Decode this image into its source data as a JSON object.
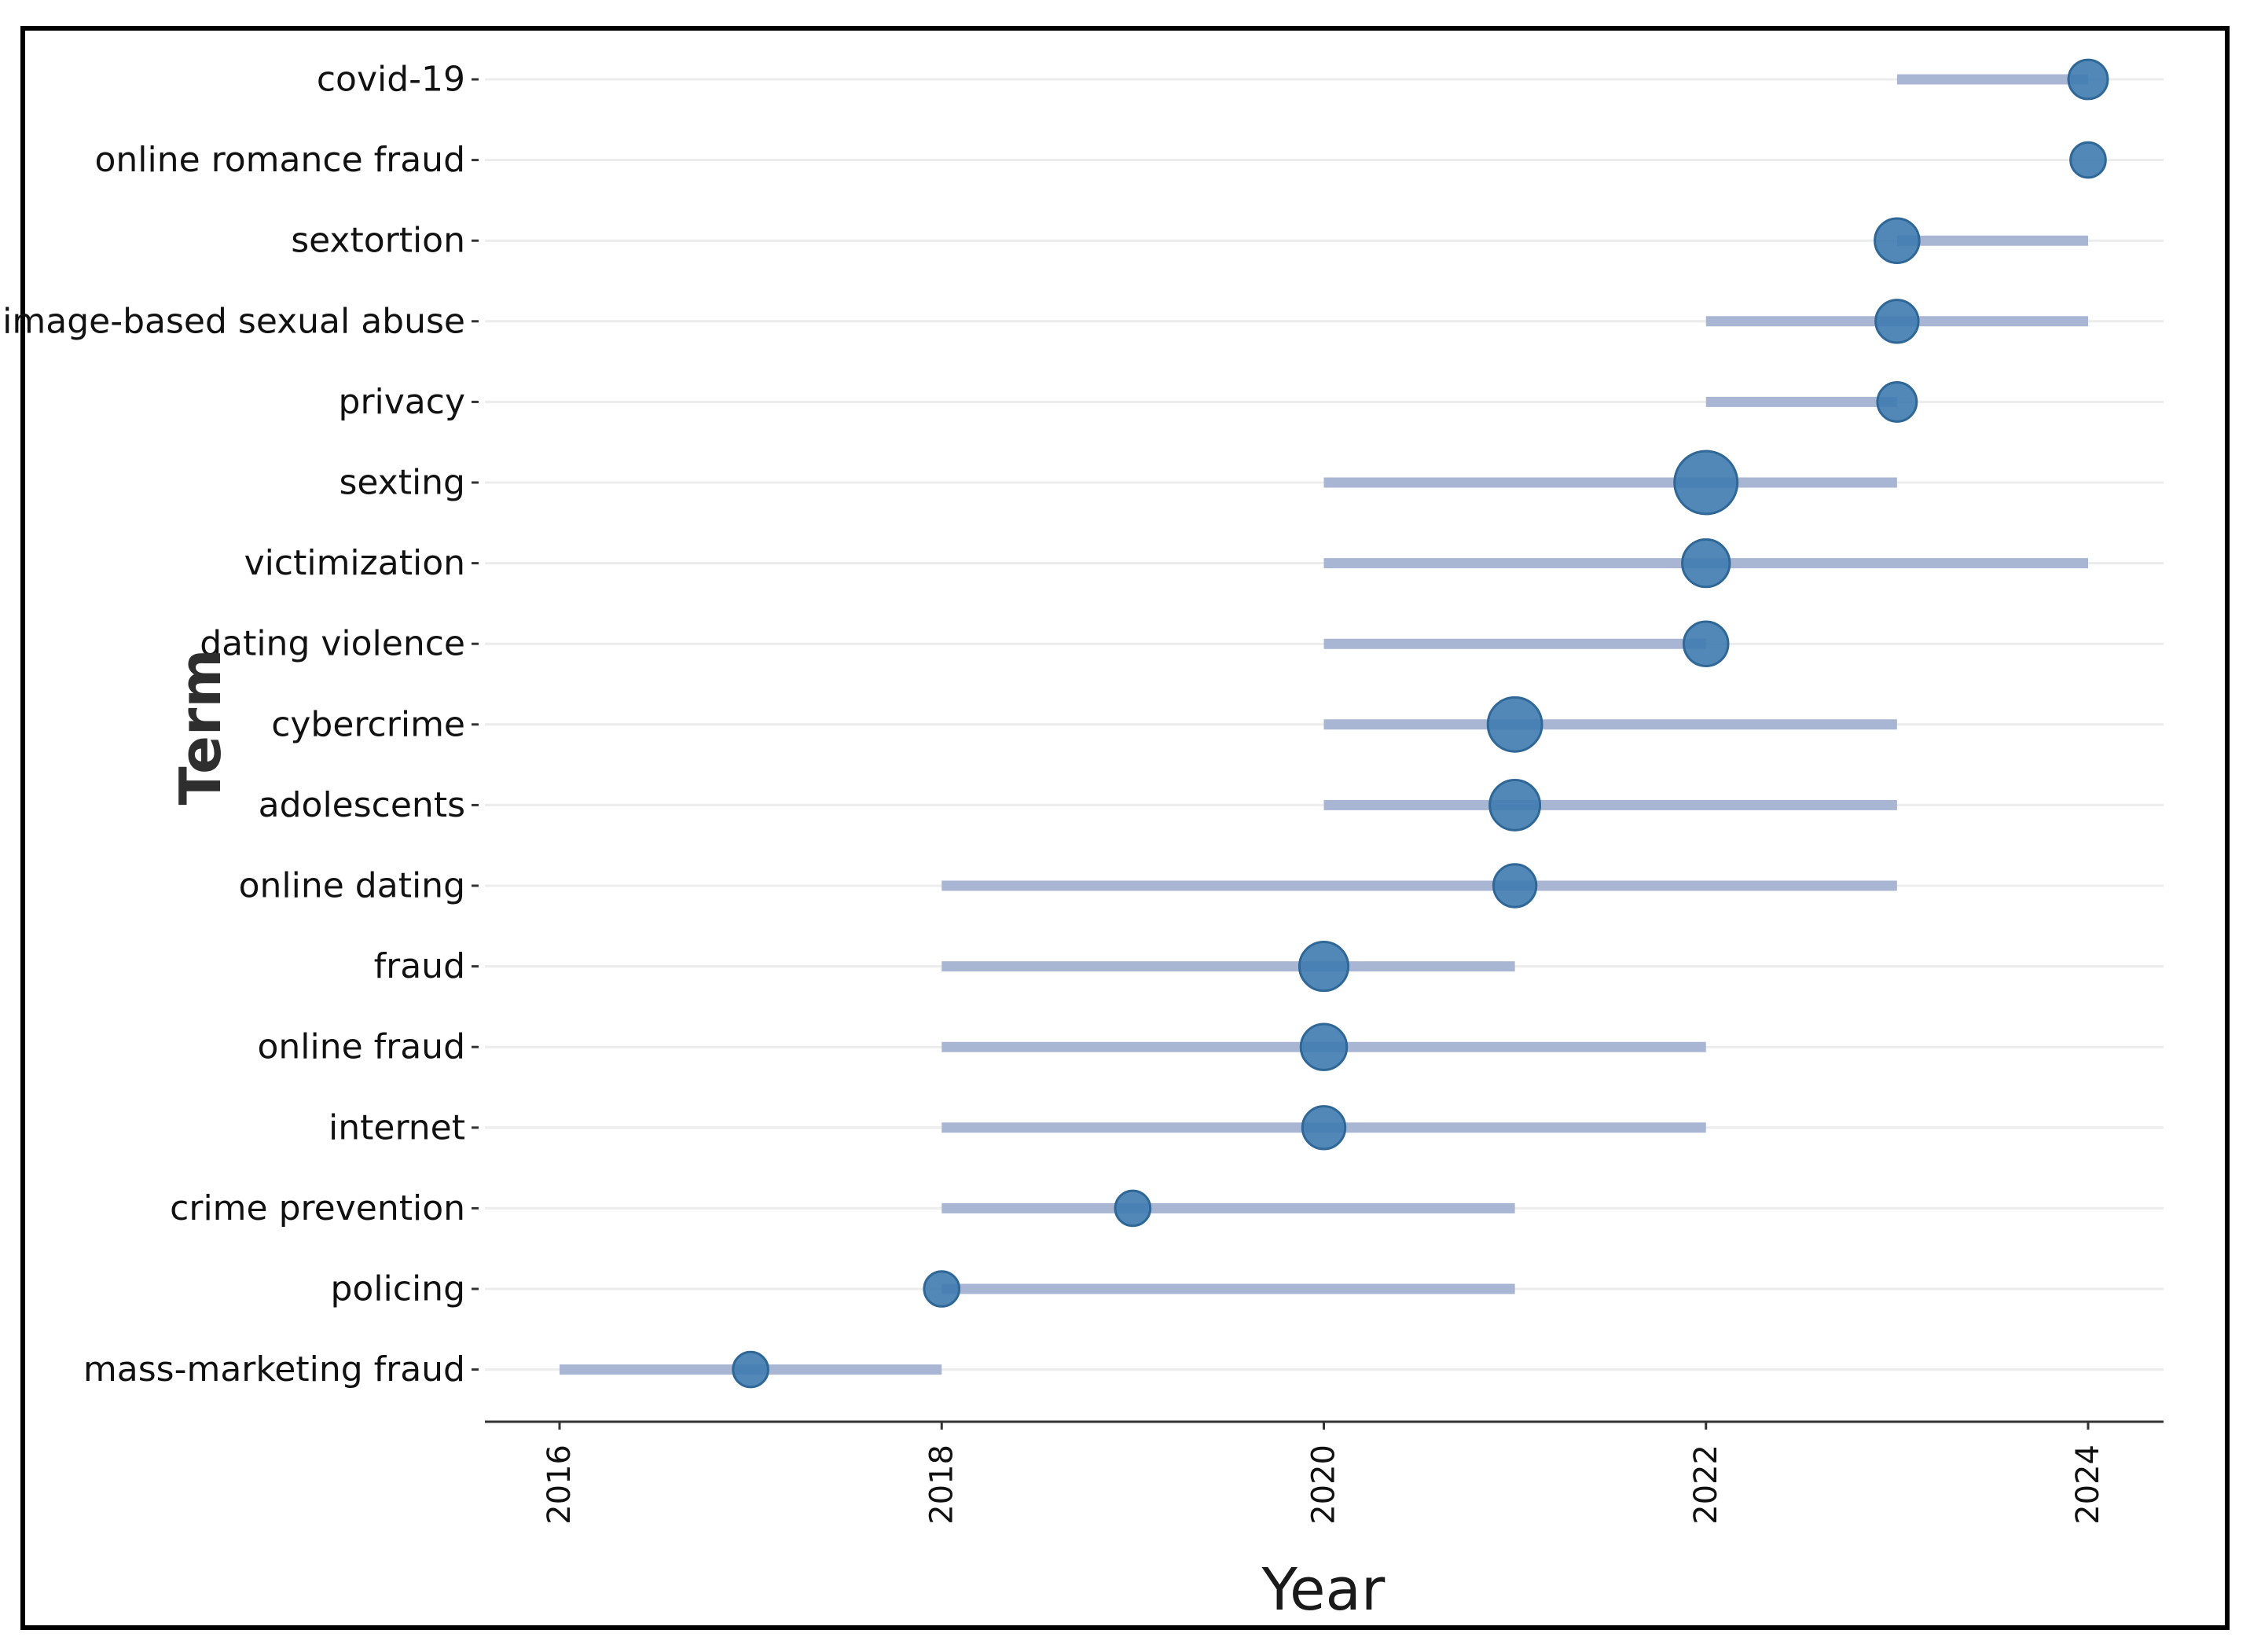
{
  "chart_data": {
    "type": "scatter",
    "subtype": "trend-topics-dot-range",
    "title": "",
    "xlabel": "Year",
    "ylabel": "Term",
    "xlim": [
      2015.8,
      2024.2
    ],
    "x_ticks": [
      2016,
      2018,
      2020,
      2022,
      2024
    ],
    "grid": true,
    "colors": {
      "bar": "#a9b6d3",
      "dot": "#3f7bb0",
      "dot_outline": "#2f6797"
    },
    "terms": [
      {
        "term": "covid-19",
        "start": 2023,
        "median": 2024,
        "end": 2024,
        "freq": 7
      },
      {
        "term": "online romance fraud",
        "start": 2024,
        "median": 2024,
        "end": 2024,
        "freq": 5
      },
      {
        "term": "sextortion",
        "start": 2023,
        "median": 2023,
        "end": 2024,
        "freq": 10
      },
      {
        "term": "image-based sexual abuse",
        "start": 2022,
        "median": 2023,
        "end": 2024,
        "freq": 9
      },
      {
        "term": "privacy",
        "start": 2022,
        "median": 2023,
        "end": 2023,
        "freq": 7
      },
      {
        "term": "sexting",
        "start": 2020,
        "median": 2022,
        "end": 2023,
        "freq": 25
      },
      {
        "term": "victimization",
        "start": 2020,
        "median": 2022,
        "end": 2024,
        "freq": 12
      },
      {
        "term": "dating violence",
        "start": 2020,
        "median": 2022,
        "end": 2022,
        "freq": 10
      },
      {
        "term": "cybercrime",
        "start": 2020,
        "median": 2021,
        "end": 2023,
        "freq": 17
      },
      {
        "term": "adolescents",
        "start": 2020,
        "median": 2021,
        "end": 2023,
        "freq": 14
      },
      {
        "term": "online dating",
        "start": 2018,
        "median": 2021,
        "end": 2023,
        "freq": 9
      },
      {
        "term": "fraud",
        "start": 2018,
        "median": 2020,
        "end": 2021,
        "freq": 13
      },
      {
        "term": "online fraud",
        "start": 2018,
        "median": 2020,
        "end": 2022,
        "freq": 11
      },
      {
        "term": "internet",
        "start": 2018,
        "median": 2020,
        "end": 2022,
        "freq": 9
      },
      {
        "term": "crime prevention",
        "start": 2018,
        "median": 2019,
        "end": 2021,
        "freq": 5
      },
      {
        "term": "policing",
        "start": 2018,
        "median": 2018,
        "end": 2021,
        "freq": 5
      },
      {
        "term": "mass-marketing fraud",
        "start": 2016,
        "median": 2017,
        "end": 2018,
        "freq": 5
      }
    ]
  }
}
